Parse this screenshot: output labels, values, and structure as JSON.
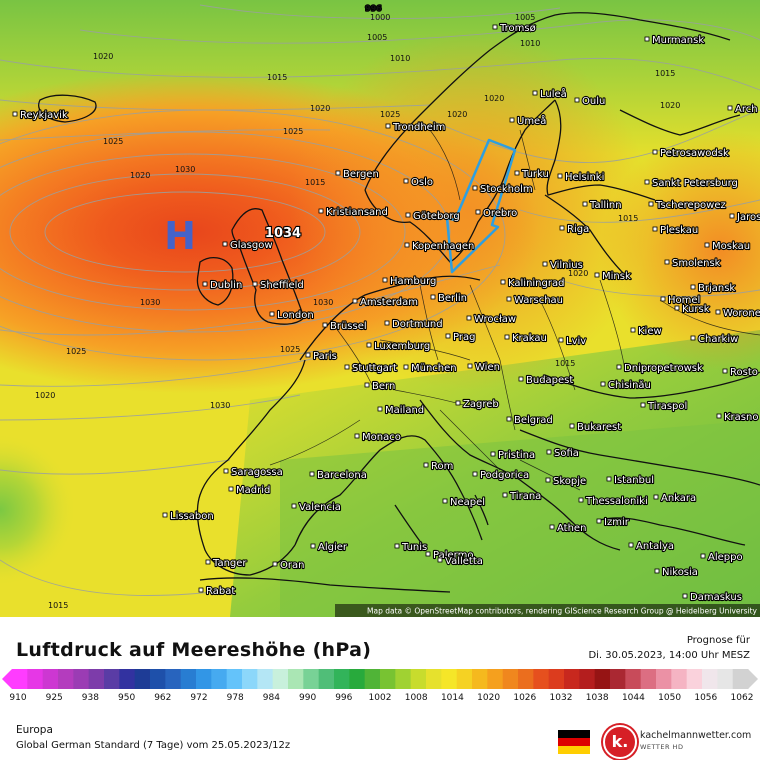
{
  "map": {
    "high_label": "H",
    "high_value": "1034",
    "credit": "Map data © OpenStreetMap contributors, rendering GIScience Research Group @ Heidelberg University",
    "isobar_labels": [
      "996",
      "1000",
      "1005",
      "1010",
      "1005",
      "1020",
      "1015",
      "1010",
      "1015",
      "1020",
      "1020",
      "1025",
      "1030",
      "1020",
      "1015",
      "1025",
      "1030",
      "1030",
      "1020",
      "1025",
      "1025",
      "1020",
      "1030",
      "1020",
      "1025",
      "1015",
      "1015",
      "1020",
      "1015",
      "1015",
      "1020",
      "1015",
      "1015",
      "1025",
      "1030"
    ],
    "cities": [
      "Reykjavik",
      "Tromsø",
      "Murmansk",
      "Luleå",
      "Oulu",
      "Arch",
      "Umeå",
      "Trondheim",
      "Petrosawodsk",
      "Bergen",
      "Oslo",
      "Stockholm",
      "Turku",
      "Helsinki",
      "Sankt Petersburg",
      "Kristiansand",
      "Göteborg",
      "Orebro",
      "Tallinn",
      "Tscherepowez",
      "Jaros",
      "Glasgow",
      "Kopenhagen",
      "Riga",
      "Pleskau",
      "Moskau",
      "Dublin",
      "Sheffield",
      "Hamburg",
      "Vilnius",
      "Smolensk",
      "Minsk",
      "Kaliningrad",
      "Brjansk",
      "Amsterdam",
      "Berlin",
      "Warschau",
      "Homel",
      "Kursk",
      "Worone",
      "London",
      "Brüssel",
      "Dortmund",
      "Wrocław",
      "Kiew",
      "Prag",
      "Krakau",
      "Charkiw",
      "Luxemburg",
      "Lviv",
      "Paris",
      "Stuttgart",
      "München",
      "Wien",
      "Dnipropetrowsk",
      "Rosto",
      "Budapest",
      "Chisinău",
      "Bern",
      "Mailand",
      "Tiraspol",
      "Zagreb",
      "Krasno",
      "Belgrad",
      "Bukarest",
      "Monaco",
      "Pristina",
      "Sofia",
      "Saragossa",
      "Barcelona",
      "Rom",
      "Podgorica",
      "Skopje",
      "Istanbul",
      "Madrid",
      "Tirana",
      "Thessaloniki",
      "Ankara",
      "Neapel",
      "Valencia",
      "Lissabon",
      "Izmir",
      "Athen",
      "Palermo",
      "Algier",
      "Tunis",
      "Antalya",
      "Tanger",
      "Oran",
      "Valletta",
      "Nikosia",
      "Aleppo",
      "Rabat",
      "Damaskus"
    ]
  },
  "legend": {
    "title": "Luftdruck auf Meereshöhe (hPa)",
    "forecast_label": "Prognose für",
    "forecast_date": "Di. 30.05.2023, 14:00 Uhr MESZ",
    "scale_ticks": [
      "910",
      "925",
      "938",
      "950",
      "962",
      "972",
      "978",
      "984",
      "990",
      "996",
      "1002",
      "1008",
      "1014",
      "1020",
      "1026",
      "1032",
      "1038",
      "1044",
      "1050",
      "1056",
      "1062"
    ],
    "region": "Europa",
    "model": "Global German Standard (7 Tage)  vom  25.05.2023/12z",
    "brand_name": "kachelmannwetter.com",
    "brand_sub": "WETTER HD",
    "brand_logo": "k.",
    "flag_colors": [
      "#000000",
      "#dd0000",
      "#ffce00"
    ]
  }
}
